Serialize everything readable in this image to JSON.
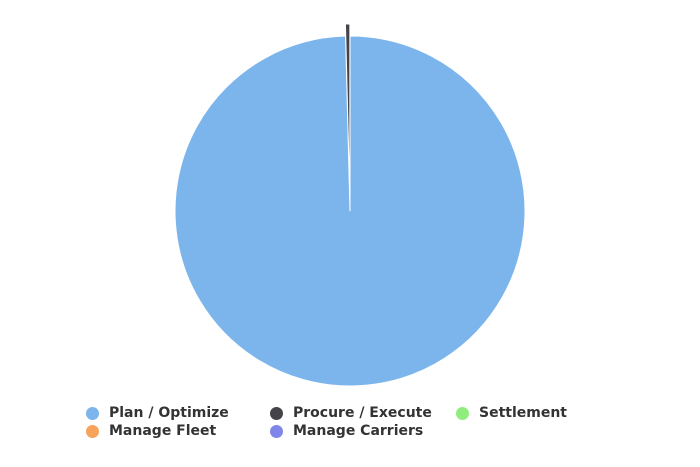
{
  "chart_data": {
    "type": "pie",
    "slices": [
      {
        "label": "Plan / Optimize",
        "value": 99.6,
        "color": "#7cb5ec"
      },
      {
        "label": "Procure / Execute",
        "value": 0.4,
        "color": "#434348"
      },
      {
        "label": "Settlement",
        "value": 0,
        "color": "#90ed7d"
      },
      {
        "label": "Manage Fleet",
        "value": 0,
        "color": "#f7a35c"
      },
      {
        "label": "Manage Carriers",
        "value": 0,
        "color": "#8085e9"
      }
    ],
    "legend_position": "bottom"
  }
}
